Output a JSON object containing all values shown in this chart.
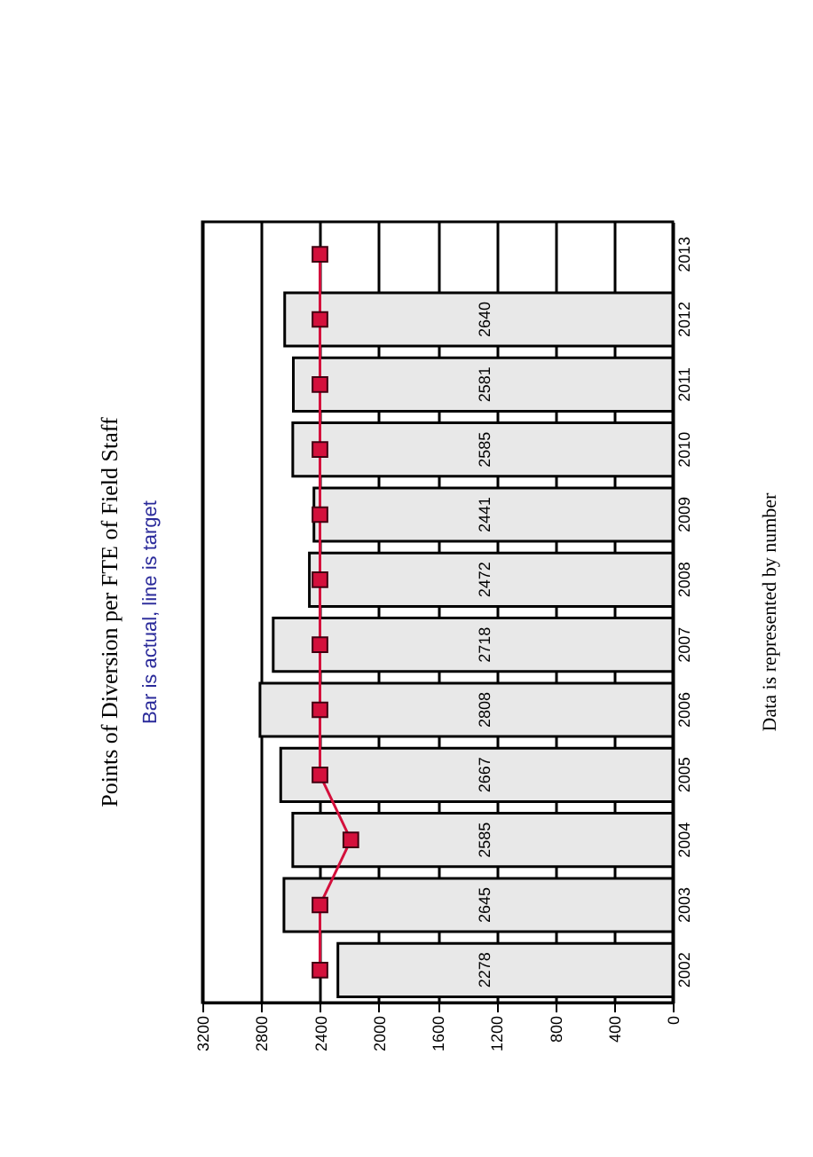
{
  "chart_data": {
    "type": "bar",
    "orientation": "horizontal",
    "title": "Points of Diversion per FTE of Field Staff",
    "subtitle": "Bar is actual, line is target",
    "annotations": [
      "Data is represented by number"
    ],
    "categories": [
      "2013",
      "2012",
      "2011",
      "2010",
      "2009",
      "2008",
      "2007",
      "2006",
      "2005",
      "2004",
      "2003",
      "2002"
    ],
    "series": [
      {
        "color": "#e8e8e8",
        "values": [
          null,
          2640,
          2581,
          2585,
          2441,
          2472,
          2718,
          2808,
          2667,
          2585,
          2645,
          2278
        ],
        "value_labels": [
          null,
          "2640",
          "2581",
          "2585",
          "2441",
          "2472",
          "2718",
          "2808",
          "2667",
          "2585",
          "2645",
          "2278"
        ]
      },
      {
        "type": "line",
        "color": "#d4103c",
        "marker": "square",
        "values": [
          2400,
          2400,
          2400,
          2400,
          2400,
          2400,
          2400,
          2400,
          2400,
          2190,
          2400,
          2400
        ]
      }
    ],
    "xlim": [
      3200,
      0
    ],
    "xticks": [
      0,
      400,
      800,
      1200,
      1600,
      2000,
      2400,
      2800,
      3200
    ],
    "grid": "x"
  }
}
